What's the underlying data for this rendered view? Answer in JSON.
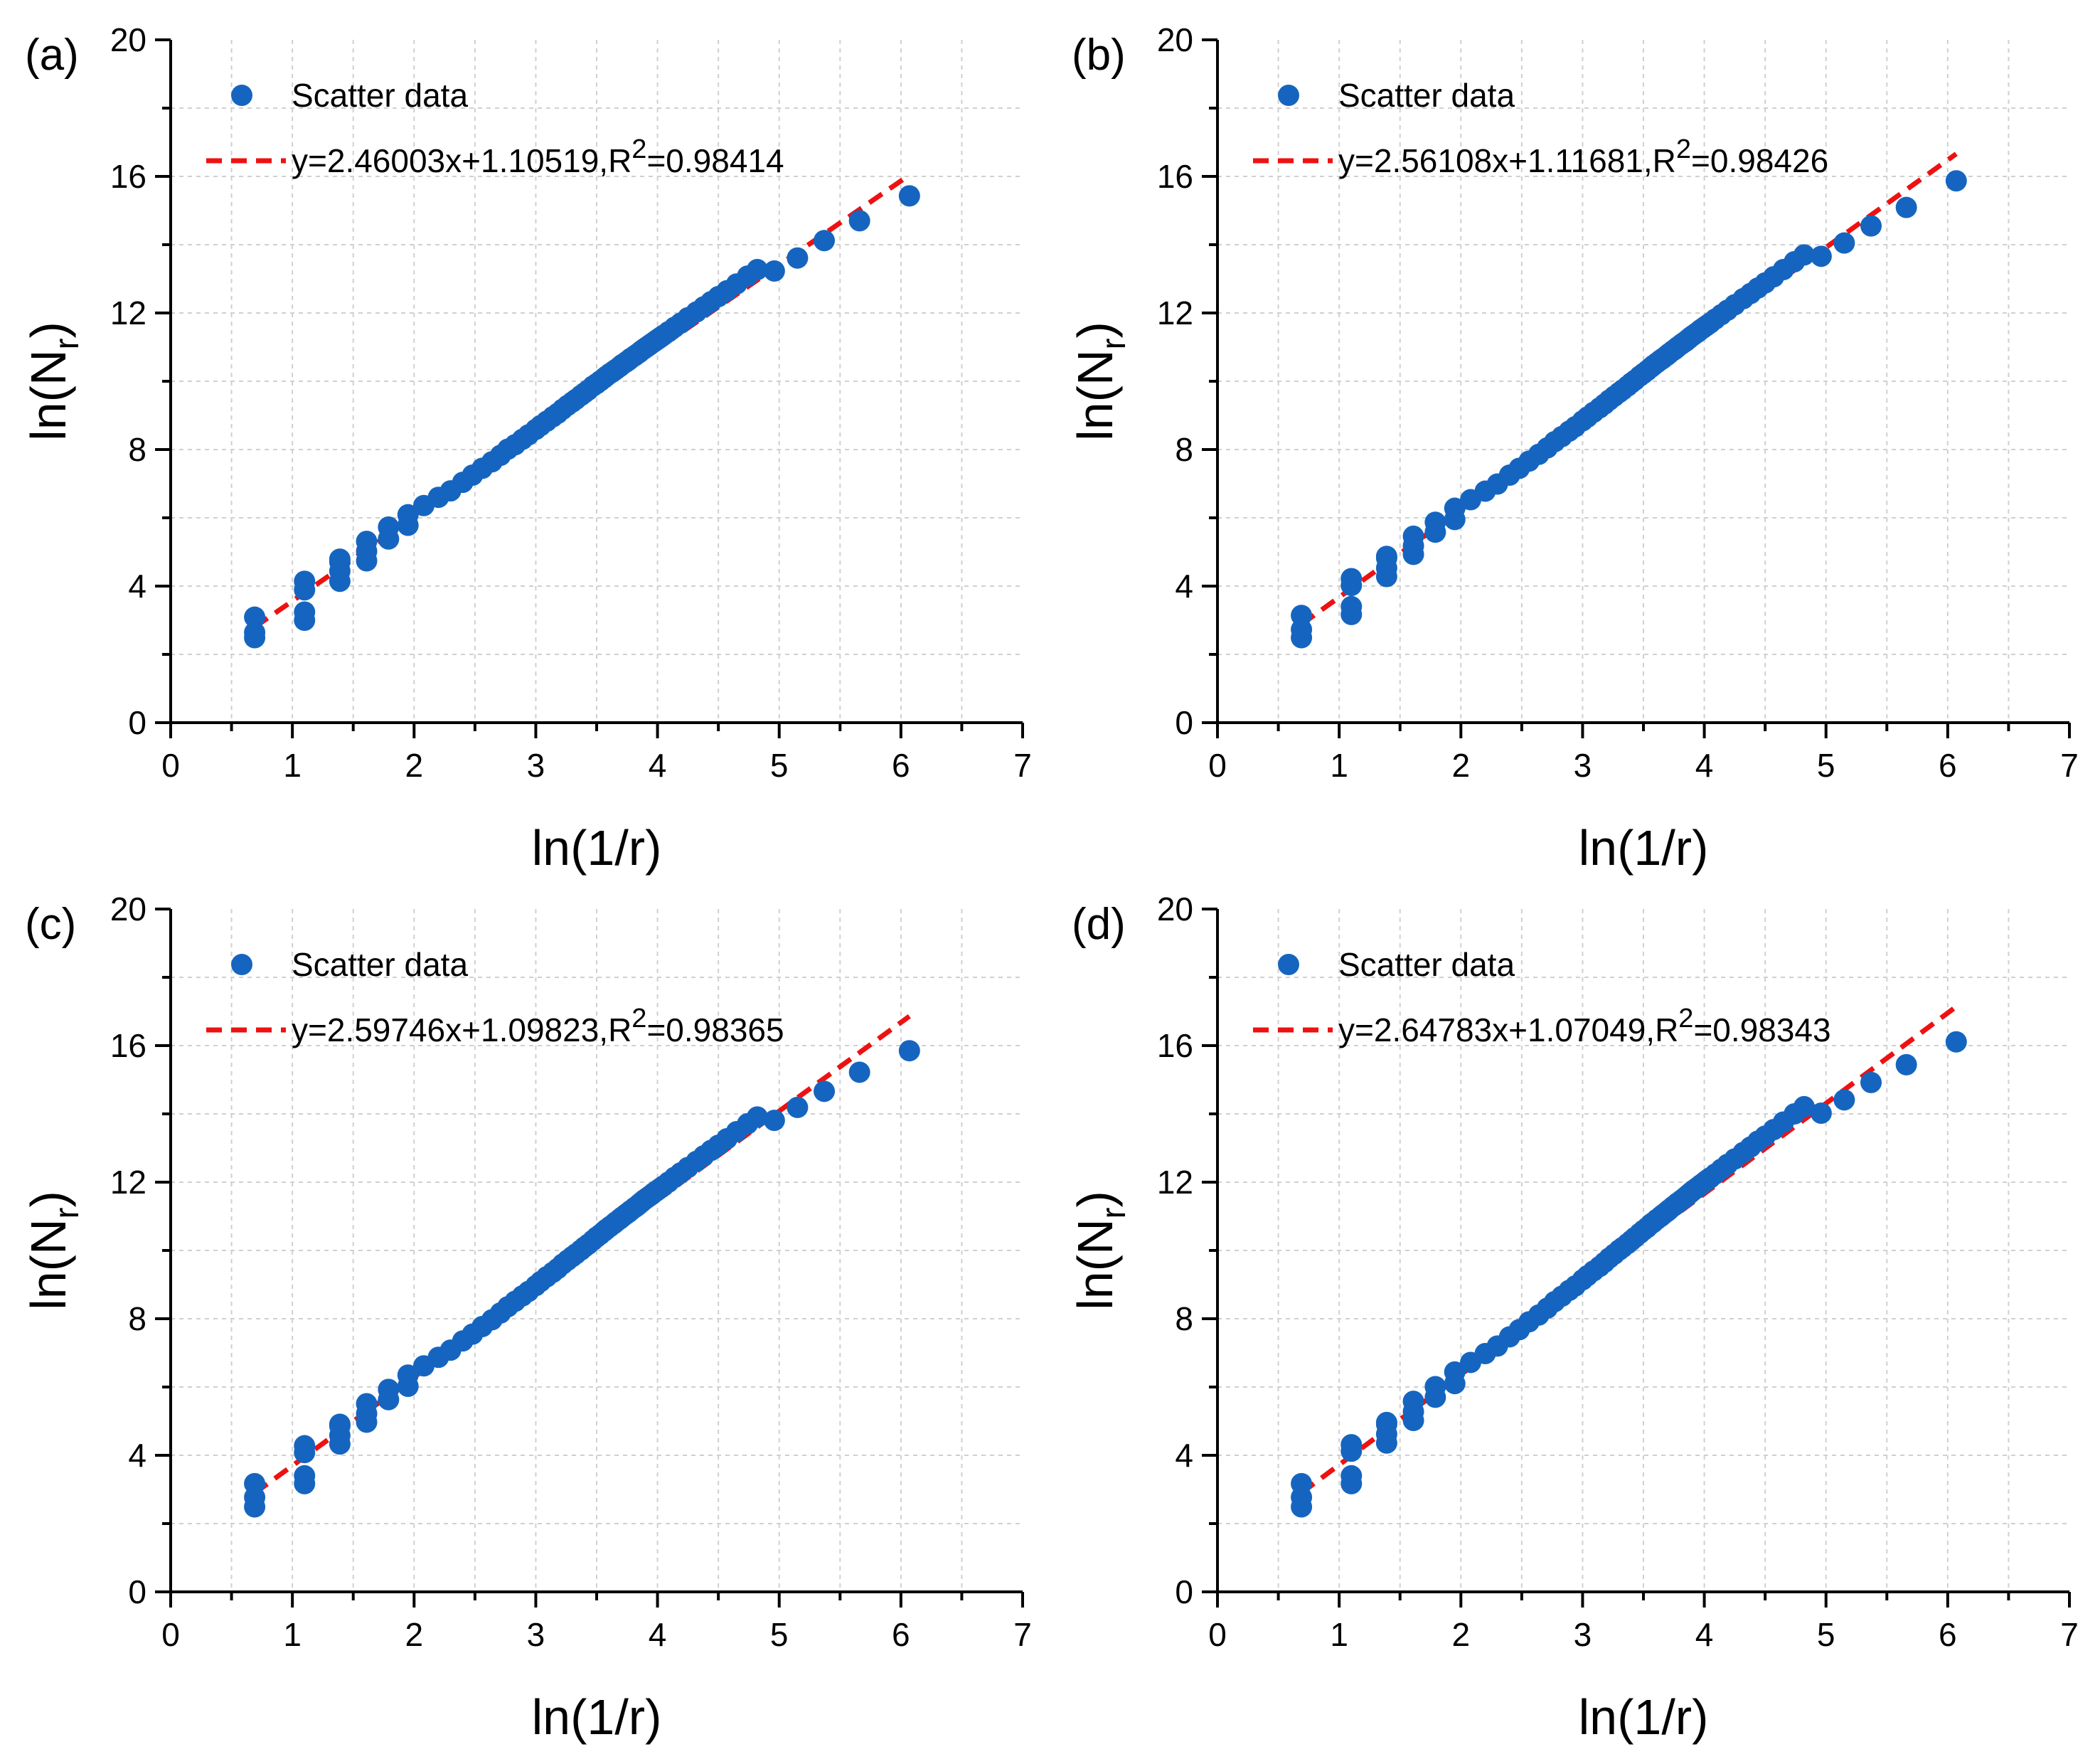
{
  "figure": {
    "panels": [
      {
        "id": "a",
        "panel_label": "(a)",
        "legend": {
          "scatter_label": "Scatter data",
          "fit_eq_prefix": "y=2.46003x+1.10519,R",
          "fit_eq_sup": "2",
          "fit_eq_suffix": "=0.98414"
        },
        "xlabel": "ln(1/r)",
        "ylabel_main": "ln(N",
        "ylabel_sub": "r",
        "ylabel_close": ")"
      },
      {
        "id": "b",
        "panel_label": "(b)",
        "legend": {
          "scatter_label": "Scatter data",
          "fit_eq_prefix": "y=2.56108x+1.11681,R",
          "fit_eq_sup": "2",
          "fit_eq_suffix": "=0.98426"
        },
        "xlabel": "ln(1/r)",
        "ylabel_main": "ln(N",
        "ylabel_sub": "r",
        "ylabel_close": ")"
      },
      {
        "id": "c",
        "panel_label": "(c)",
        "legend": {
          "scatter_label": "Scatter data",
          "fit_eq_prefix": "y=2.59746x+1.09823,R",
          "fit_eq_sup": "2",
          "fit_eq_suffix": "=0.98365"
        },
        "xlabel": "ln(1/r)",
        "ylabel_main": "ln(N",
        "ylabel_sub": "r",
        "ylabel_close": ")"
      },
      {
        "id": "d",
        "panel_label": "(d)",
        "legend": {
          "scatter_label": "Scatter data",
          "fit_eq_prefix": "y=2.64783x+1.07049,R",
          "fit_eq_sup": "2",
          "fit_eq_suffix": "=0.98343"
        },
        "xlabel": "ln(1/r)",
        "ylabel_main": "ln(N",
        "ylabel_sub": "r",
        "ylabel_close": ")"
      }
    ]
  },
  "colors": {
    "scatter": "#1565c0",
    "fit_line": "#ee1111",
    "axis": "#000000",
    "grid": "#d0d0d0"
  },
  "chart_data": [
    {
      "type": "scatter",
      "panel": "(a)",
      "title": "",
      "xlabel": "ln(1/r)",
      "ylabel": "ln(Nr)",
      "xlim": [
        0,
        7
      ],
      "ylim": [
        0,
        20
      ],
      "xticks": [
        0,
        1,
        2,
        3,
        4,
        5,
        6,
        7
      ],
      "yticks": [
        0,
        4,
        8,
        12,
        16,
        20
      ],
      "grid": true,
      "legend_position": "top-left",
      "series": [
        {
          "name": "Scatter data",
          "kind": "points",
          "x": [
            0.69,
            0.69,
            0.69,
            1.1,
            1.1,
            1.1,
            1.1,
            1.39,
            1.39,
            1.39,
            1.39,
            1.61,
            1.61,
            1.61,
            1.79,
            1.79,
            1.95,
            1.95,
            2.08,
            2.2,
            2.3,
            2.4,
            2.48,
            2.56,
            2.64,
            2.71,
            2.77,
            2.83,
            2.89,
            2.94,
            3.0,
            3.04,
            3.09,
            3.14,
            3.18,
            3.22,
            3.26,
            3.3,
            3.33,
            3.37,
            3.4,
            3.43,
            3.47,
            3.5,
            3.53,
            3.56,
            3.58,
            3.61,
            3.64,
            3.66,
            3.69,
            3.71,
            3.74,
            3.76,
            3.78,
            3.81,
            3.83,
            3.85,
            3.87,
            3.89,
            3.91,
            3.93,
            3.95,
            3.97,
            3.99,
            4.01,
            4.03,
            4.05,
            4.09,
            4.14,
            4.19,
            4.25,
            4.32,
            4.38,
            4.44,
            4.5,
            4.57,
            4.65,
            4.74,
            4.82,
            4.96,
            5.15,
            5.37,
            5.66,
            6.07
          ],
          "y": [
            2.49,
            2.64,
            3.09,
            3.0,
            3.24,
            3.89,
            4.14,
            4.14,
            4.44,
            4.71,
            4.79,
            4.74,
            5.02,
            5.31,
            5.38,
            5.73,
            5.78,
            6.09,
            6.36,
            6.6,
            6.79,
            7.04,
            7.25,
            7.45,
            7.64,
            7.83,
            8.01,
            8.14,
            8.3,
            8.43,
            8.59,
            8.7,
            8.83,
            8.96,
            9.06,
            9.18,
            9.29,
            9.39,
            9.47,
            9.58,
            9.66,
            9.74,
            9.86,
            9.93,
            10.01,
            10.09,
            10.15,
            10.23,
            10.3,
            10.35,
            10.43,
            10.49,
            10.56,
            10.61,
            10.67,
            10.74,
            10.79,
            10.84,
            10.9,
            10.95,
            11.0,
            11.05,
            11.1,
            11.15,
            11.2,
            11.25,
            11.3,
            11.35,
            11.45,
            11.58,
            11.7,
            11.86,
            12.03,
            12.18,
            12.33,
            12.48,
            12.65,
            12.85,
            13.08,
            13.27,
            13.23,
            13.61,
            14.12,
            14.7,
            15.43
          ]
        },
        {
          "name": "y=2.46003x+1.10519,R2=0.98414",
          "kind": "fit",
          "slope": 2.46003,
          "intercept": 1.10519,
          "r2": 0.98414,
          "x_range": [
            0.69,
            6.07
          ],
          "y_range": [
            2.8,
            16.04
          ]
        }
      ]
    },
    {
      "type": "scatter",
      "panel": "(b)",
      "title": "",
      "xlabel": "ln(1/r)",
      "ylabel": "ln(Nr)",
      "xlim": [
        0,
        7
      ],
      "ylim": [
        0,
        20
      ],
      "xticks": [
        0,
        1,
        2,
        3,
        4,
        5,
        6,
        7
      ],
      "yticks": [
        0,
        4,
        8,
        12,
        16,
        20
      ],
      "grid": true,
      "legend_position": "top-left",
      "series": [
        {
          "name": "Scatter data",
          "kind": "points",
          "x": [
            0.69,
            0.69,
            0.69,
            1.1,
            1.1,
            1.1,
            1.1,
            1.39,
            1.39,
            1.39,
            1.39,
            1.61,
            1.61,
            1.61,
            1.79,
            1.79,
            1.95,
            1.95,
            2.08,
            2.2,
            2.3,
            2.4,
            2.48,
            2.56,
            2.64,
            2.71,
            2.77,
            2.83,
            2.89,
            2.94,
            3.0,
            3.04,
            3.09,
            3.14,
            3.18,
            3.22,
            3.26,
            3.3,
            3.33,
            3.37,
            3.4,
            3.43,
            3.47,
            3.5,
            3.53,
            3.56,
            3.58,
            3.61,
            3.64,
            3.66,
            3.69,
            3.71,
            3.74,
            3.76,
            3.78,
            3.81,
            3.83,
            3.85,
            3.87,
            3.89,
            3.91,
            3.93,
            3.95,
            3.97,
            3.99,
            4.01,
            4.03,
            4.05,
            4.09,
            4.14,
            4.19,
            4.25,
            4.32,
            4.38,
            4.44,
            4.5,
            4.57,
            4.65,
            4.74,
            4.82,
            4.96,
            5.15,
            5.37,
            5.66,
            6.07
          ],
          "y": [
            2.49,
            2.73,
            3.14,
            3.17,
            3.4,
            4.02,
            4.22,
            4.28,
            4.53,
            4.82,
            4.87,
            4.93,
            5.18,
            5.46,
            5.58,
            5.87,
            5.95,
            6.28,
            6.53,
            6.78,
            6.99,
            7.25,
            7.45,
            7.66,
            7.86,
            8.05,
            8.23,
            8.38,
            8.54,
            8.67,
            8.84,
            8.95,
            9.09,
            9.22,
            9.33,
            9.45,
            9.56,
            9.67,
            9.75,
            9.86,
            9.95,
            10.03,
            10.15,
            10.23,
            10.31,
            10.4,
            10.46,
            10.54,
            10.62,
            10.67,
            10.75,
            10.81,
            10.89,
            10.94,
            11.0,
            11.08,
            11.13,
            11.18,
            11.24,
            11.3,
            11.35,
            11.4,
            11.45,
            11.51,
            11.56,
            11.61,
            11.66,
            11.71,
            11.82,
            11.95,
            12.08,
            12.24,
            12.42,
            12.57,
            12.73,
            12.88,
            13.06,
            13.27,
            13.5,
            13.7,
            13.66,
            14.05,
            14.55,
            15.09,
            15.87
          ]
        },
        {
          "name": "y=2.56108x+1.11681,R2=0.98426",
          "kind": "fit",
          "slope": 2.56108,
          "intercept": 1.11681,
          "r2": 0.98426,
          "x_range": [
            0.69,
            6.07
          ],
          "y_range": [
            2.88,
            16.66
          ]
        }
      ]
    },
    {
      "type": "scatter",
      "panel": "(c)",
      "title": "",
      "xlabel": "ln(1/r)",
      "ylabel": "ln(Nr)",
      "xlim": [
        0,
        7
      ],
      "ylim": [
        0,
        20
      ],
      "xticks": [
        0,
        1,
        2,
        3,
        4,
        5,
        6,
        7
      ],
      "yticks": [
        0,
        4,
        8,
        12,
        16,
        20
      ],
      "grid": true,
      "legend_position": "top-left",
      "series": [
        {
          "name": "Scatter data",
          "kind": "points",
          "x": [
            0.69,
            0.69,
            0.69,
            1.1,
            1.1,
            1.1,
            1.1,
            1.39,
            1.39,
            1.39,
            1.39,
            1.61,
            1.61,
            1.61,
            1.79,
            1.79,
            1.95,
            1.95,
            2.08,
            2.2,
            2.3,
            2.4,
            2.48,
            2.56,
            2.64,
            2.71,
            2.77,
            2.83,
            2.89,
            2.94,
            3.0,
            3.04,
            3.09,
            3.14,
            3.18,
            3.22,
            3.26,
            3.3,
            3.33,
            3.37,
            3.4,
            3.43,
            3.47,
            3.5,
            3.53,
            3.56,
            3.58,
            3.61,
            3.64,
            3.66,
            3.69,
            3.71,
            3.74,
            3.76,
            3.78,
            3.81,
            3.83,
            3.85,
            3.87,
            3.89,
            3.91,
            3.93,
            3.95,
            3.97,
            3.99,
            4.01,
            4.03,
            4.05,
            4.09,
            4.14,
            4.19,
            4.25,
            4.32,
            4.38,
            4.44,
            4.5,
            4.57,
            4.65,
            4.74,
            4.82,
            4.96,
            5.15,
            5.37,
            5.66,
            6.07
          ],
          "y": [
            2.49,
            2.77,
            3.17,
            3.17,
            3.4,
            4.08,
            4.28,
            4.33,
            4.58,
            4.86,
            4.91,
            4.97,
            5.22,
            5.51,
            5.63,
            5.93,
            6.02,
            6.35,
            6.62,
            6.87,
            7.08,
            7.35,
            7.55,
            7.77,
            7.97,
            8.17,
            8.35,
            8.51,
            8.67,
            8.8,
            8.97,
            9.09,
            9.23,
            9.36,
            9.47,
            9.6,
            9.71,
            9.82,
            9.9,
            10.01,
            10.1,
            10.18,
            10.3,
            10.39,
            10.47,
            10.56,
            10.62,
            10.7,
            10.78,
            10.84,
            10.92,
            10.98,
            11.06,
            11.11,
            11.17,
            11.25,
            11.3,
            11.36,
            11.42,
            11.48,
            11.53,
            11.58,
            11.63,
            11.69,
            11.74,
            11.79,
            11.84,
            11.89,
            12.0,
            12.14,
            12.27,
            12.43,
            12.61,
            12.77,
            12.93,
            13.08,
            13.27,
            13.48,
            13.71,
            13.91,
            13.81,
            14.19,
            14.66,
            15.22,
            15.85
          ]
        },
        {
          "name": "y=2.59746x+1.09823,R2=0.98365",
          "kind": "fit",
          "slope": 2.59746,
          "intercept": 1.09823,
          "r2": 0.98365,
          "x_range": [
            0.69,
            6.07
          ],
          "y_range": [
            2.89,
            16.86
          ]
        }
      ]
    },
    {
      "type": "scatter",
      "panel": "(d)",
      "title": "",
      "xlabel": "ln(1/r)",
      "ylabel": "ln(Nr)",
      "xlim": [
        0,
        7
      ],
      "ylim": [
        0,
        20
      ],
      "xticks": [
        0,
        1,
        2,
        3,
        4,
        5,
        6,
        7
      ],
      "yticks": [
        0,
        4,
        8,
        12,
        16,
        20
      ],
      "grid": true,
      "legend_position": "top-left",
      "series": [
        {
          "name": "Scatter data",
          "kind": "points",
          "x": [
            0.69,
            0.69,
            0.69,
            1.1,
            1.1,
            1.1,
            1.1,
            1.39,
            1.39,
            1.39,
            1.39,
            1.61,
            1.61,
            1.61,
            1.79,
            1.79,
            1.95,
            1.95,
            2.08,
            2.2,
            2.3,
            2.4,
            2.48,
            2.56,
            2.64,
            2.71,
            2.77,
            2.83,
            2.89,
            2.94,
            3.0,
            3.04,
            3.09,
            3.14,
            3.18,
            3.22,
            3.26,
            3.3,
            3.33,
            3.37,
            3.4,
            3.43,
            3.47,
            3.5,
            3.53,
            3.56,
            3.58,
            3.61,
            3.64,
            3.66,
            3.69,
            3.71,
            3.74,
            3.76,
            3.78,
            3.81,
            3.83,
            3.85,
            3.87,
            3.89,
            3.91,
            3.93,
            3.95,
            3.97,
            3.99,
            4.01,
            4.03,
            4.05,
            4.09,
            4.14,
            4.19,
            4.25,
            4.32,
            4.38,
            4.44,
            4.5,
            4.57,
            4.65,
            4.74,
            4.82,
            4.96,
            5.15,
            5.37,
            5.66,
            6.07
          ],
          "y": [
            2.49,
            2.77,
            3.17,
            3.17,
            3.4,
            4.12,
            4.31,
            4.36,
            4.62,
            4.91,
            4.96,
            5.02,
            5.28,
            5.58,
            5.7,
            6.01,
            6.1,
            6.44,
            6.72,
            6.98,
            7.2,
            7.47,
            7.68,
            7.91,
            8.11,
            8.31,
            8.5,
            8.66,
            8.83,
            8.96,
            9.14,
            9.26,
            9.4,
            9.53,
            9.65,
            9.78,
            9.89,
            10.01,
            10.09,
            10.2,
            10.29,
            10.38,
            10.5,
            10.59,
            10.67,
            10.77,
            10.82,
            10.91,
            10.99,
            11.05,
            11.13,
            11.19,
            11.28,
            11.33,
            11.39,
            11.47,
            11.52,
            11.58,
            11.64,
            11.7,
            11.76,
            11.81,
            11.86,
            11.92,
            11.97,
            12.03,
            12.08,
            12.13,
            12.24,
            12.38,
            12.52,
            12.68,
            12.87,
            13.03,
            13.2,
            13.35,
            13.54,
            13.76,
            14.0,
            14.21,
            14.02,
            14.41,
            14.92,
            15.44,
            16.11
          ]
        },
        {
          "name": "y=2.64783x+1.07049,R2=0.98343",
          "kind": "fit",
          "slope": 2.64783,
          "intercept": 1.07049,
          "r2": 0.98343,
          "x_range": [
            0.69,
            6.07
          ],
          "y_range": [
            2.9,
            17.14
          ]
        }
      ]
    }
  ]
}
